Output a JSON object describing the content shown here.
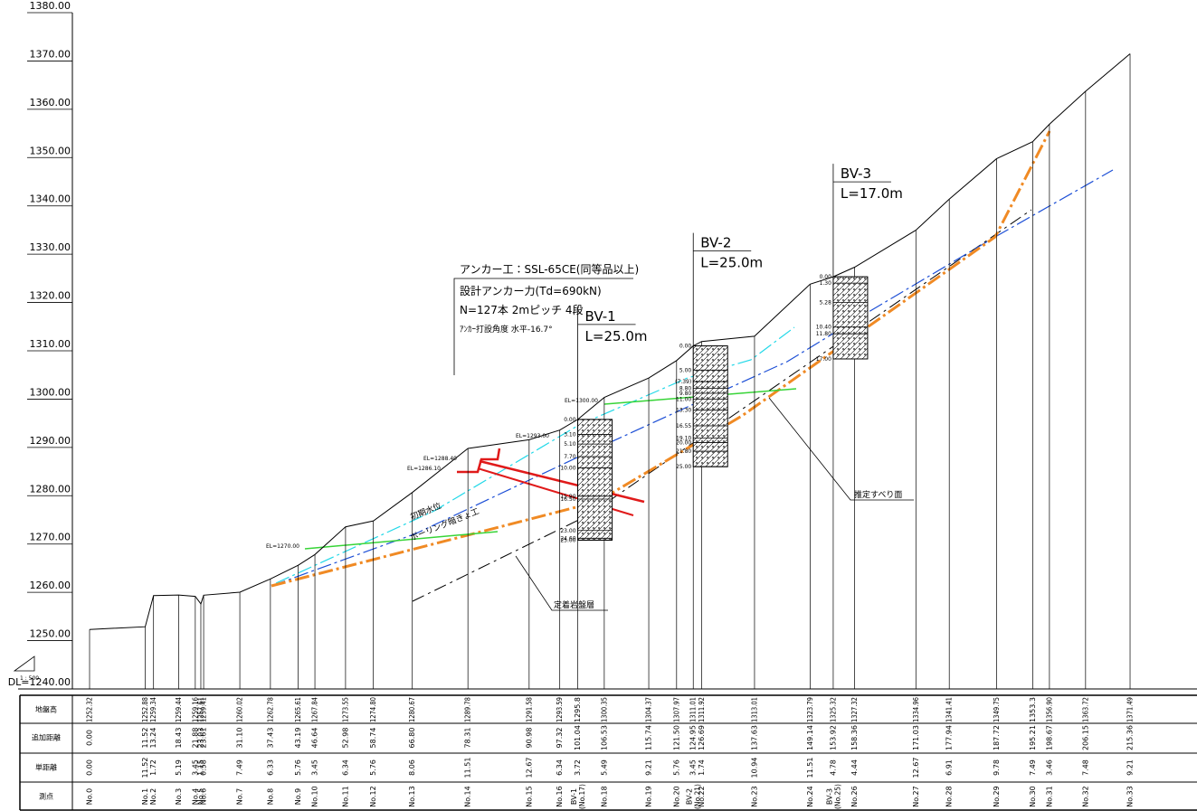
{
  "header": {
    "scale": "1 : 500"
  },
  "axis": {
    "ylim": [
      1240,
      1380
    ],
    "yticks": [
      {
        "value": 1240,
        "label": "DL=1240.00"
      },
      {
        "value": 1250,
        "label": "1250.00"
      },
      {
        "value": 1260,
        "label": "1260.00"
      },
      {
        "value": 1270,
        "label": "1270.00"
      },
      {
        "value": 1280,
        "label": "1280.00"
      },
      {
        "value": 1290,
        "label": "1290.00"
      },
      {
        "value": 1300,
        "label": "1300.00"
      },
      {
        "value": 1310,
        "label": "1310.00"
      },
      {
        "value": 1320,
        "label": "1320.00"
      },
      {
        "value": 1330,
        "label": "1330.00"
      },
      {
        "value": 1340,
        "label": "1340.00"
      },
      {
        "value": 1350,
        "label": "1350.00"
      },
      {
        "value": 1360,
        "label": "1360.00"
      },
      {
        "value": 1370,
        "label": "1370.00"
      },
      {
        "value": 1380,
        "label": "1380.00"
      }
    ]
  },
  "table": {
    "rows": [
      "地盤高",
      "追加距離",
      "単距離",
      "測点"
    ],
    "stations": [
      {
        "name": "No.0",
        "elevation": 1252.32,
        "distance": {
          "value": 0,
          "label": "0.00"
        },
        "interval": {
          "value": 0,
          "label": "0.00"
        }
      },
      {
        "name": "No.1",
        "elevation": 1252.88,
        "distance": 11.52,
        "interval": 11.52
      },
      {
        "name": "No.2",
        "elevation": 1259.34,
        "distance": 13.24,
        "interval": 1.72
      },
      {
        "name": "No.3",
        "elevation": 1259.44,
        "distance": 18.43,
        "interval": 5.19
      },
      {
        "name": "No.4",
        "elevation": 1259.16,
        "distance": 21.88,
        "interval": 3.45
      },
      {
        "name": "No.5",
        "elevation": 1257.61,
        "distance": 23.03,
        "interval": 1.15
      },
      {
        "name": "No.6",
        "elevation": 1259.41,
        "distance": 23.61,
        "interval": 0.58
      },
      {
        "name": "No.7",
        "elevation": 1260.02,
        "distance": {
          "value": 31.1,
          "label": "31.10"
        },
        "interval": 7.49
      },
      {
        "name": "No.8",
        "elevation": 1262.78,
        "distance": 37.43,
        "interval": 6.33
      },
      {
        "name": "No.9",
        "elevation": 1265.61,
        "distance": 43.19,
        "interval": 5.76
      },
      {
        "name": "No.10",
        "elevation": 1267.84,
        "distance": 46.64,
        "interval": 3.45
      },
      {
        "name": "No.11",
        "elevation": 1273.55,
        "distance": 52.98,
        "interval": 6.34
      },
      {
        "name": "No.12",
        "elevation": {
          "value": 1274.8,
          "label": "1274.80"
        },
        "distance": 58.74,
        "interval": 5.76
      },
      {
        "name": "No.13",
        "elevation": 1280.67,
        "distance": {
          "value": 66.8,
          "label": "66.80"
        },
        "interval": 8.06
      },
      {
        "name": "No.14",
        "elevation": 1289.78,
        "distance": 78.31,
        "interval": 11.51
      },
      {
        "name": "No.15",
        "elevation": 1291.58,
        "distance": 90.98,
        "interval": 12.67
      },
      {
        "name": "No.16",
        "elevation": 1293.59,
        "distance": 97.32,
        "interval": 6.34
      },
      {
        "name": "BV-1",
        "note": "(No.17)",
        "elevation": 1295.8,
        "distance": 101.04,
        "interval": 3.72
      },
      {
        "name": "No.18",
        "elevation": 1300.35,
        "distance": 106.53,
        "interval": 5.49
      },
      {
        "name": "No.19",
        "elevation": 1304.37,
        "distance": 115.74,
        "interval": 9.21
      },
      {
        "name": "No.20",
        "elevation": 1307.97,
        "distance": {
          "value": 121.5,
          "label": "121.50"
        },
        "interval": 5.76
      },
      {
        "name": "BV-2",
        "note": "(No.21)",
        "elevation": 1311.01,
        "distance": 124.95,
        "interval": 3.45
      },
      {
        "name": "No.22",
        "elevation": 1311.92,
        "distance": 126.69,
        "interval": 1.74
      },
      {
        "name": "No.23",
        "elevation": 1313.01,
        "distance": 137.63,
        "interval": 10.94
      },
      {
        "name": "No.24",
        "elevation": 1323.79,
        "distance": 149.14,
        "interval": 11.51
      },
      {
        "name": "BV-3",
        "note": "(No.25)",
        "elevation": 1325.32,
        "distance": 153.92,
        "interval": 4.78
      },
      {
        "name": "No.26",
        "elevation": 1327.32,
        "distance": 158.36,
        "interval": 4.44
      },
      {
        "name": "No.27",
        "elevation": 1334.96,
        "distance": 171.03,
        "interval": 12.67
      },
      {
        "name": "No.28",
        "elevation": 1341.41,
        "distance": 177.94,
        "interval": 6.91
      },
      {
        "name": "No.29",
        "elevation": 1349.75,
        "distance": 187.72,
        "interval": 9.78
      },
      {
        "name": "No.30",
        "elevation": 1353.3,
        "distance": 195.21,
        "interval": 7.49
      },
      {
        "name": "No.31",
        "elevation": {
          "value": 1356.9,
          "label": "1356.90"
        },
        "distance": 198.67,
        "interval": 3.46
      },
      {
        "name": "No.32",
        "elevation": 1363.72,
        "distance": 206.15,
        "interval": 7.48
      },
      {
        "name": "No.33",
        "elevation": 1371.49,
        "distance": 215.36,
        "interval": 9.21
      }
    ]
  },
  "boreholes": [
    {
      "name": "BV-1",
      "length": "L=25.0m",
      "depths": [
        {
          "value": 0,
          "label": "0.00"
        },
        {
          "value": 3.1,
          "label": "3.10"
        },
        {
          "value": 5.1,
          "label": "5.10"
        },
        {
          "value": 7.7,
          "label": "7.70"
        },
        {
          "value": 10,
          "label": "10.00"
        },
        {
          "value": 15.9,
          "label": "15.90"
        },
        {
          "value": 16.5,
          "label": "16.50"
        },
        {
          "value": 23,
          "label": "23.00"
        },
        {
          "value": 24.6,
          "label": "24.60"
        },
        {
          "value": 25,
          "label": "25.00"
        }
      ]
    },
    {
      "name": "BV-2",
      "length": "L=25.0m",
      "depths": [
        {
          "value": 0,
          "label": "0.00"
        },
        {
          "value": 5,
          "label": "5.00"
        },
        {
          "value": 7.39,
          "label": "(7.39)"
        },
        {
          "value": 8.8,
          "label": "8.80"
        },
        {
          "value": 9.8,
          "label": "9.80"
        },
        {
          "value": 11,
          "label": "11.00"
        },
        {
          "value": 13.3,
          "label": "13.30"
        },
        {
          "value": 16.55,
          "label": "16.55"
        },
        {
          "value": 19.1,
          "label": "19.10"
        },
        {
          "value": 20,
          "label": "20.00"
        },
        {
          "value": 21.8,
          "label": "21.80"
        },
        {
          "value": 25,
          "label": "25.00"
        }
      ]
    },
    {
      "name": "BV-3",
      "length": "L=17.0m",
      "depths": [
        {
          "value": 0,
          "label": "0.00"
        },
        {
          "value": 1.3,
          "label": "1.30"
        },
        {
          "value": 5.28,
          "label": "5.28"
        },
        {
          "value": 10.4,
          "label": "10.40"
        },
        {
          "value": 11.8,
          "label": "11.80"
        },
        {
          "value": 17,
          "label": "17.00"
        }
      ]
    }
  ],
  "annotations": {
    "anchor": [
      "アンカー工：SSL-65CE(同等品以上)",
      "設計アンカー力(Td=690kN)",
      "N=127本 2mピッチ 4段",
      "ｱﾝｶｰ打設角度 水平-16.7°"
    ],
    "slip_surface": "推定すべり面",
    "bedrock": "定着岩盤層",
    "water_level": "初期水位",
    "drain": "ボーリング暗きょ工",
    "elevation_labels": [
      "EL=1288.40",
      "EL=1286.10",
      "EL=1293.00",
      "EL=1300.00",
      "EL=1270.00"
    ]
  }
}
